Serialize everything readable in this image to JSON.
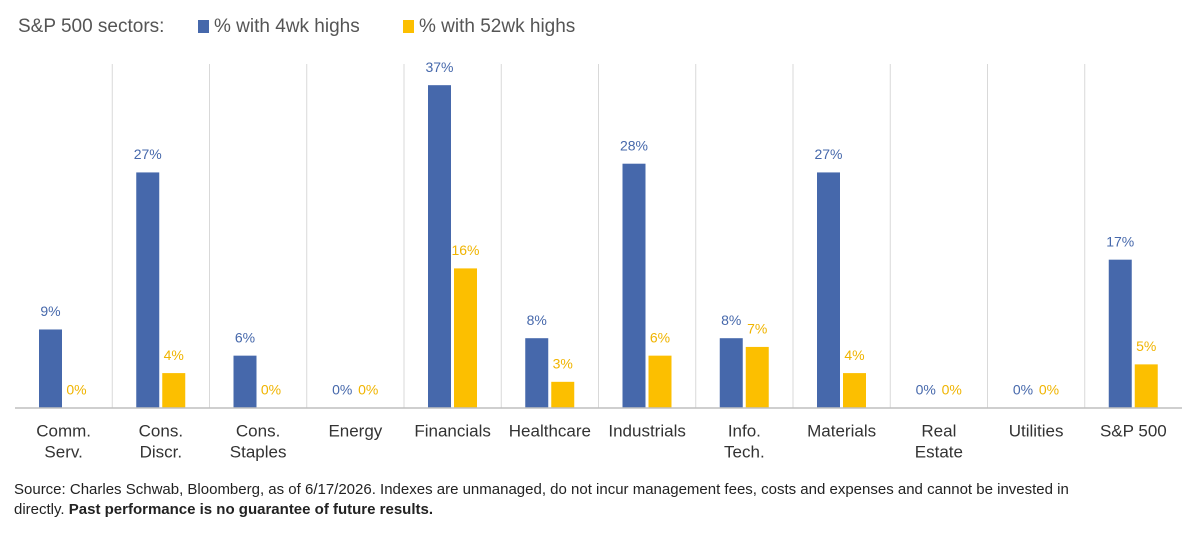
{
  "chart_data": {
    "type": "bar",
    "title": "S&P 500 sectors:",
    "categories": [
      [
        "Comm.",
        "Serv."
      ],
      [
        "Cons.",
        "Discr."
      ],
      [
        "Cons.",
        "Staples"
      ],
      [
        "Energy"
      ],
      [
        "Financials"
      ],
      [
        "Healthcare"
      ],
      [
        "Industrials"
      ],
      [
        "Info.",
        "Tech."
      ],
      [
        "Materials"
      ],
      [
        "Real",
        "Estate"
      ],
      [
        "Utilities"
      ],
      [
        "S&P 500"
      ]
    ],
    "series": [
      {
        "name": "% with 4wk highs",
        "color": "#4668ab",
        "values": [
          9,
          27,
          6,
          0,
          37,
          8,
          28,
          8,
          27,
          0,
          0,
          17
        ],
        "value_labels": [
          "9%",
          "27%",
          "6%",
          "0%",
          "37%",
          "8%",
          "28%",
          "8%",
          "27%",
          "0%",
          "0%",
          "17%"
        ]
      },
      {
        "name": "% with 52wk highs",
        "color": "#fcbf00",
        "values": [
          0,
          4,
          0,
          0,
          16,
          3,
          6,
          7,
          4,
          0,
          0,
          5
        ],
        "value_labels": [
          "0%",
          "4%",
          "0%",
          "0%",
          "16%",
          "3%",
          "6%",
          "7%",
          "4%",
          "0%",
          "0%",
          "5%"
        ]
      }
    ],
    "ylim": [
      0,
      40
    ],
    "footnote": "Source: Charles Schwab, Bloomberg, as of 6/17/2026.  Indexes are unmanaged, do not incur management fees, costs and expenses and cannot be invested in directly.",
    "footnote_bold": "Past performance is no guarantee of future results."
  }
}
